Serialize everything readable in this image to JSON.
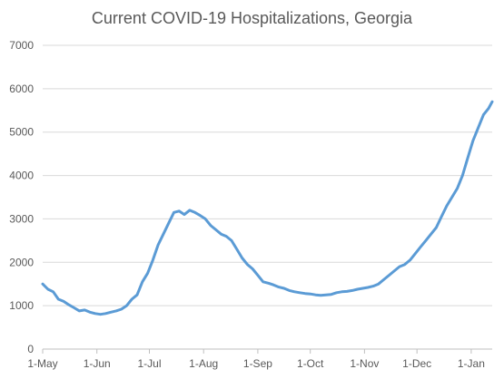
{
  "chart_data": {
    "type": "line",
    "title": "Current COVID-19 Hospitalizations, Georgia",
    "xlabel": "",
    "ylabel": "",
    "ylim": [
      0,
      7000
    ],
    "y_ticks": [
      0,
      1000,
      2000,
      3000,
      4000,
      5000,
      6000,
      7000
    ],
    "x_ticks": [
      "1-May",
      "1-Jun",
      "1-Jul",
      "1-Aug",
      "1-Sep",
      "1-Oct",
      "1-Nov",
      "1-Dec",
      "1-Jan"
    ],
    "grid": true,
    "legend": "none",
    "series_color": "#5b9bd5",
    "series": [
      {
        "x": [
          "2020-05-01",
          "2020-05-04",
          "2020-05-07",
          "2020-05-10",
          "2020-05-13",
          "2020-05-16",
          "2020-05-19",
          "2020-05-22",
          "2020-05-25",
          "2020-05-28",
          "2020-05-31",
          "2020-06-03",
          "2020-06-06",
          "2020-06-09",
          "2020-06-12",
          "2020-06-15",
          "2020-06-18",
          "2020-06-21",
          "2020-06-24",
          "2020-06-27",
          "2020-06-30",
          "2020-07-03",
          "2020-07-06",
          "2020-07-09",
          "2020-07-12",
          "2020-07-15",
          "2020-07-18",
          "2020-07-21",
          "2020-07-24",
          "2020-07-27",
          "2020-07-30",
          "2020-08-02",
          "2020-08-05",
          "2020-08-08",
          "2020-08-11",
          "2020-08-14",
          "2020-08-17",
          "2020-08-20",
          "2020-08-23",
          "2020-08-26",
          "2020-08-29",
          "2020-09-01",
          "2020-09-04",
          "2020-09-07",
          "2020-09-10",
          "2020-09-13",
          "2020-09-16",
          "2020-09-19",
          "2020-09-22",
          "2020-09-25",
          "2020-09-28",
          "2020-10-01",
          "2020-10-04",
          "2020-10-07",
          "2020-10-10",
          "2020-10-13",
          "2020-10-16",
          "2020-10-19",
          "2020-10-22",
          "2020-10-25",
          "2020-10-28",
          "2020-10-31",
          "2020-11-03",
          "2020-11-06",
          "2020-11-09",
          "2020-11-12",
          "2020-11-15",
          "2020-11-18",
          "2020-11-21",
          "2020-11-24",
          "2020-11-27",
          "2020-11-30",
          "2020-12-03",
          "2020-12-06",
          "2020-12-09",
          "2020-12-12",
          "2020-12-15",
          "2020-12-18",
          "2020-12-21",
          "2020-12-24",
          "2020-12-27",
          "2020-12-30",
          "2021-01-02",
          "2021-01-05",
          "2021-01-08",
          "2021-01-11",
          "2021-01-13"
        ],
        "y": [
          1500,
          1380,
          1320,
          1150,
          1100,
          1020,
          950,
          880,
          900,
          850,
          820,
          800,
          820,
          850,
          880,
          920,
          1000,
          1150,
          1250,
          1550,
          1750,
          2050,
          2400,
          2650,
          2900,
          3150,
          3180,
          3100,
          3200,
          3150,
          3080,
          3000,
          2850,
          2750,
          2650,
          2600,
          2500,
          2300,
          2100,
          1950,
          1850,
          1700,
          1550,
          1520,
          1480,
          1430,
          1400,
          1350,
          1320,
          1300,
          1280,
          1270,
          1250,
          1240,
          1250,
          1260,
          1300,
          1320,
          1330,
          1350,
          1380,
          1400,
          1420,
          1450,
          1500,
          1600,
          1700,
          1800,
          1900,
          1950,
          2050,
          2200,
          2350,
          2500,
          2650,
          2800,
          3050,
          3300,
          3500,
          3700,
          4000,
          4400,
          4800,
          5100,
          5400,
          5550,
          5700
        ]
      }
    ]
  }
}
